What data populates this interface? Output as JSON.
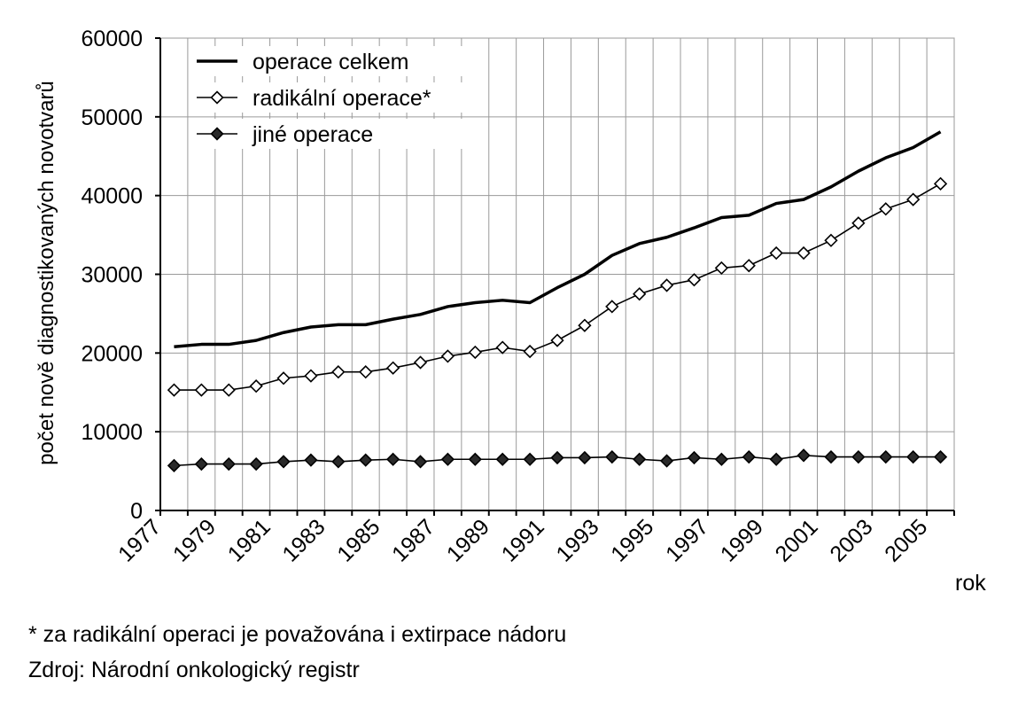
{
  "chart_data": {
    "type": "line",
    "title": "",
    "xlabel": "rok",
    "ylabel": "počet nově diagnostikovaných novotvarů",
    "ylim": [
      0,
      60000
    ],
    "yticks": [
      0,
      10000,
      20000,
      30000,
      40000,
      50000,
      60000
    ],
    "xlim": [
      1977,
      2006
    ],
    "xticks": [
      "1977",
      "1979",
      "1981",
      "1983",
      "1985",
      "1987",
      "1989",
      "1991",
      "1993",
      "1995",
      "1997",
      "1999",
      "2001",
      "2003",
      "2005"
    ],
    "grid": true,
    "legend_position": "top-left",
    "x": [
      1977.5,
      1978.5,
      1979.5,
      1980.5,
      1981.5,
      1982.5,
      1983.5,
      1984.5,
      1985.5,
      1986.5,
      1987.5,
      1988.5,
      1989.5,
      1990.5,
      1991.5,
      1992.5,
      1993.5,
      1994.5,
      1995.5,
      1996.5,
      1997.5,
      1998.5,
      1999.5,
      2000.5,
      2001.5,
      2002.5,
      2003.5,
      2004.5,
      2005.5
    ],
    "series": [
      {
        "name": "operace celkem",
        "marker": "none",
        "color": "#000000",
        "values": [
          20800,
          21100,
          21100,
          21600,
          22600,
          23300,
          23600,
          23600,
          24300,
          24900,
          25900,
          26400,
          26700,
          26400,
          28300,
          30000,
          32400,
          33900,
          34700,
          35900,
          37200,
          37500,
          39000,
          39500,
          41100,
          43100,
          44800,
          46100,
          48100
        ]
      },
      {
        "name": "radikální operace*",
        "marker": "diamond-open",
        "color": "#000000",
        "values": [
          15300,
          15300,
          15300,
          15800,
          16800,
          17100,
          17600,
          17600,
          18100,
          18800,
          19600,
          20100,
          20700,
          20200,
          21600,
          23500,
          25900,
          27500,
          28600,
          29300,
          30800,
          31100,
          32700,
          32700,
          34300,
          36500,
          38300,
          39500,
          41500
        ]
      },
      {
        "name": "jiné operace",
        "marker": "diamond-filled",
        "color": "#000000",
        "values": [
          5700,
          5900,
          5900,
          5900,
          6200,
          6400,
          6200,
          6400,
          6500,
          6200,
          6500,
          6500,
          6500,
          6500,
          6700,
          6700,
          6800,
          6500,
          6300,
          6700,
          6500,
          6800,
          6500,
          7000,
          6800,
          6800,
          6800,
          6800,
          6800
        ]
      }
    ]
  },
  "footnotes": {
    "note": "* za radikální operaci je považována i extirpace nádoru",
    "source": "Zdroj: Národní onkologický registr"
  }
}
